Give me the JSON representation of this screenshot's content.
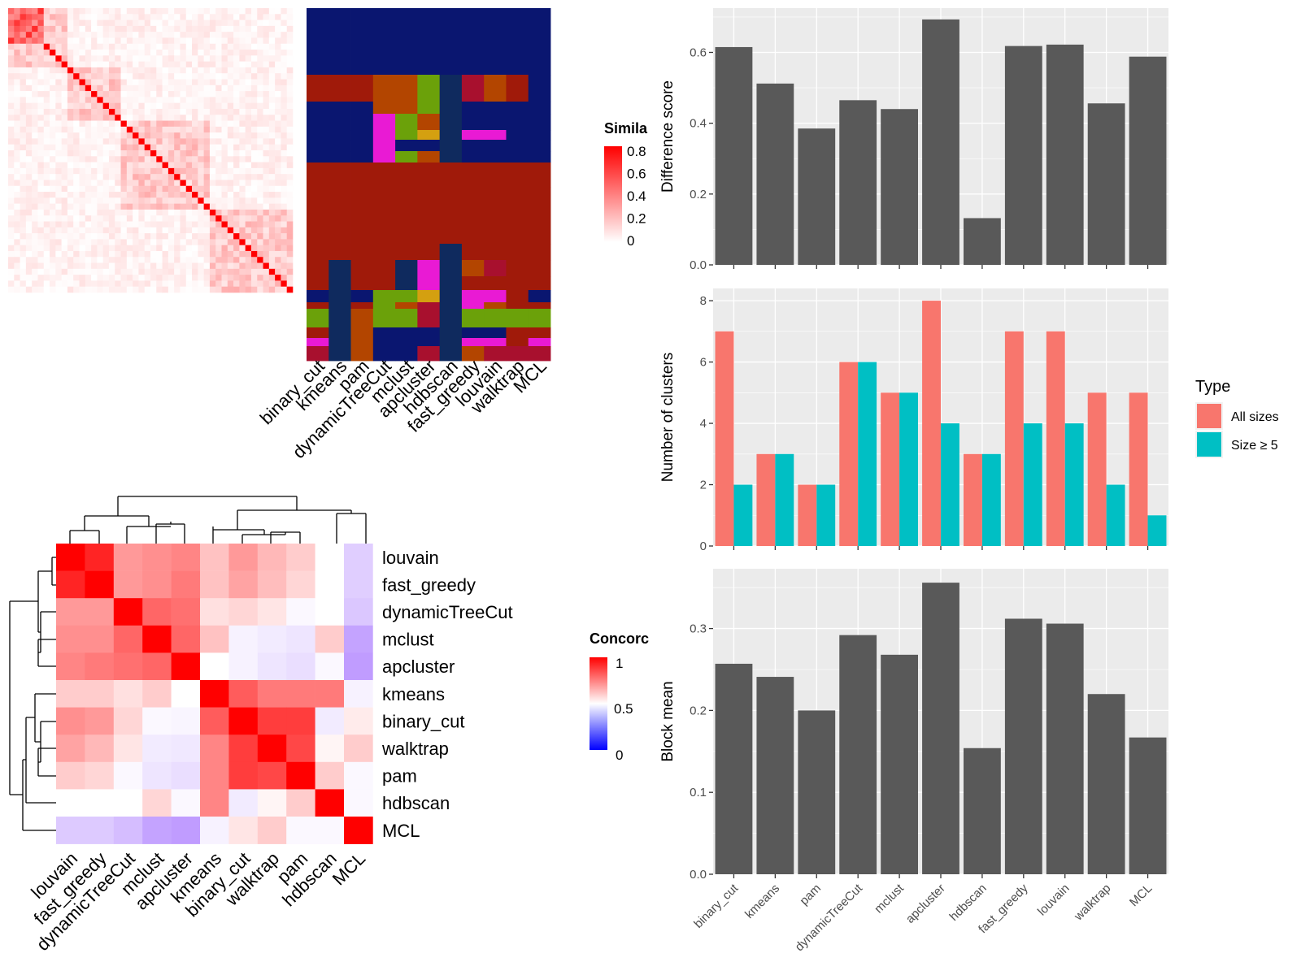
{
  "colors": {
    "bar_dark": "#595959",
    "panel_bg": "#EBEBEB",
    "grid": "#FFFFFF",
    "all_sizes": "#F8766D",
    "size_ge5": "#00BFC4",
    "hm_blue": "#0000FF",
    "hm_white": "#FFFFFF",
    "hm_red": "#FF0000",
    "cl_navy": "#0A1A6E",
    "cl_darkred": "#A01A0A",
    "cl_orange": "#B34500",
    "cl_green": "#6BA10A",
    "cl_magenta": "#E91AD4",
    "cl_gold": "#D4A010",
    "cl_crimson": "#A8102E",
    "cl_deepnavy": "#0F2A5E",
    "cl_royal": "#0A1670"
  },
  "similarity_panel": {
    "legend_title": "Simila",
    "legend_ticks": [
      "0.8",
      "0.6",
      "0.4",
      "0.2",
      "0"
    ],
    "methods": [
      "binary_cut",
      "kmeans",
      "pam",
      "dynamicTreeCut",
      "mclust",
      "apcluster",
      "hdbscan",
      "fast_greedy",
      "louvain",
      "walktrap",
      "MCL"
    ]
  },
  "concordance_panel": {
    "legend_title": "Concorc",
    "legend_ticks": [
      "1",
      "0.5",
      "0"
    ],
    "row_labels": [
      "louvain",
      "fast_greedy",
      "dynamicTreeCut",
      "mclust",
      "apcluster",
      "kmeans",
      "binary_cut",
      "walktrap",
      "pam",
      "hdbscan",
      "MCL"
    ],
    "col_labels": [
      "louvain",
      "fast_greedy",
      "dynamicTreeCut",
      "mclust",
      "apcluster",
      "kmeans",
      "binary_cut",
      "walktrap",
      "pam",
      "hdbscan",
      "MCL"
    ]
  },
  "chart_data": [
    {
      "type": "heatmap",
      "title": "",
      "legend_title": "Concorc",
      "legend_range": [
        0,
        1
      ],
      "rows": [
        "louvain",
        "fast_greedy",
        "dynamicTreeCut",
        "mclust",
        "apcluster",
        "kmeans",
        "binary_cut",
        "walktrap",
        "pam",
        "hdbscan",
        "MCL"
      ],
      "cols": [
        "louvain",
        "fast_greedy",
        "dynamicTreeCut",
        "mclust",
        "apcluster",
        "kmeans",
        "binary_cut",
        "walktrap",
        "pam",
        "hdbscan",
        "MCL"
      ],
      "values": [
        [
          1.0,
          0.93,
          0.7,
          0.72,
          0.74,
          0.62,
          0.7,
          0.64,
          0.6,
          0.5,
          0.35
        ],
        [
          0.93,
          1.0,
          0.7,
          0.72,
          0.76,
          0.62,
          0.68,
          0.63,
          0.58,
          0.5,
          0.35
        ],
        [
          0.7,
          0.7,
          1.0,
          0.8,
          0.78,
          0.56,
          0.58,
          0.55,
          0.48,
          0.5,
          0.33
        ],
        [
          0.72,
          0.72,
          0.8,
          1.0,
          0.8,
          0.62,
          0.46,
          0.44,
          0.42,
          0.6,
          0.22
        ],
        [
          0.74,
          0.76,
          0.78,
          0.8,
          1.0,
          0.5,
          0.46,
          0.42,
          0.4,
          0.48,
          0.2
        ],
        [
          0.6,
          0.6,
          0.56,
          0.6,
          0.5,
          1.0,
          0.82,
          0.76,
          0.76,
          0.76,
          0.46
        ],
        [
          0.72,
          0.7,
          0.58,
          0.48,
          0.47,
          0.82,
          1.0,
          0.88,
          0.88,
          0.44,
          0.54
        ],
        [
          0.68,
          0.64,
          0.55,
          0.44,
          0.43,
          0.74,
          0.88,
          1.0,
          0.86,
          0.52,
          0.6
        ],
        [
          0.6,
          0.58,
          0.48,
          0.42,
          0.4,
          0.74,
          0.88,
          0.86,
          1.0,
          0.6,
          0.48
        ],
        [
          0.5,
          0.5,
          0.5,
          0.58,
          0.48,
          0.74,
          0.44,
          0.52,
          0.6,
          1.0,
          0.48
        ],
        [
          0.34,
          0.34,
          0.3,
          0.22,
          0.2,
          0.46,
          0.55,
          0.6,
          0.48,
          0.48,
          1.0
        ]
      ]
    },
    {
      "type": "bar",
      "title": "",
      "xlabel": "",
      "ylabel": "Difference score",
      "categories": [
        "binary_cut",
        "kmeans",
        "pam",
        "dynamicTreeCut",
        "mclust",
        "apcluster",
        "hdbscan",
        "fast_greedy",
        "louvain",
        "walktrap",
        "MCL"
      ],
      "values": [
        0.615,
        0.512,
        0.385,
        0.465,
        0.44,
        0.693,
        0.132,
        0.618,
        0.622,
        0.456,
        0.588
      ],
      "ylim": [
        0,
        0.725
      ],
      "yticks": [
        "0.0",
        "0.2",
        "0.4",
        "0.6"
      ],
      "grid": true
    },
    {
      "type": "bar",
      "title": "",
      "xlabel": "",
      "ylabel": "Number of clusters",
      "categories": [
        "binary_cut",
        "kmeans",
        "pam",
        "dynamicTreeCut",
        "mclust",
        "apcluster",
        "hdbscan",
        "fast_greedy",
        "louvain",
        "walktrap",
        "MCL"
      ],
      "series": [
        {
          "name": "All sizes",
          "values": [
            7,
            3,
            2,
            6,
            5,
            8,
            3,
            7,
            7,
            5,
            5
          ]
        },
        {
          "name": "Size ≥ 5",
          "values": [
            2,
            3,
            2,
            6,
            5,
            4,
            3,
            4,
            4,
            2,
            1
          ]
        }
      ],
      "legend_title": "Type",
      "legend_position": "right",
      "ylim": [
        0,
        8.4
      ],
      "yticks": [
        "0",
        "2",
        "4",
        "6",
        "8"
      ],
      "grid": true
    },
    {
      "type": "bar",
      "title": "",
      "xlabel": "",
      "ylabel": "Block mean",
      "categories": [
        "binary_cut",
        "kmeans",
        "pam",
        "dynamicTreeCut",
        "mclust",
        "apcluster",
        "hdbscan",
        "fast_greedy",
        "louvain",
        "walktrap",
        "MCL"
      ],
      "values": [
        0.257,
        0.241,
        0.2,
        0.292,
        0.268,
        0.356,
        0.154,
        0.312,
        0.306,
        0.22,
        0.167
      ],
      "ylim": [
        0,
        0.373
      ],
      "yticks": [
        "0.0",
        "0.1",
        "0.2",
        "0.3"
      ],
      "grid": true
    }
  ]
}
